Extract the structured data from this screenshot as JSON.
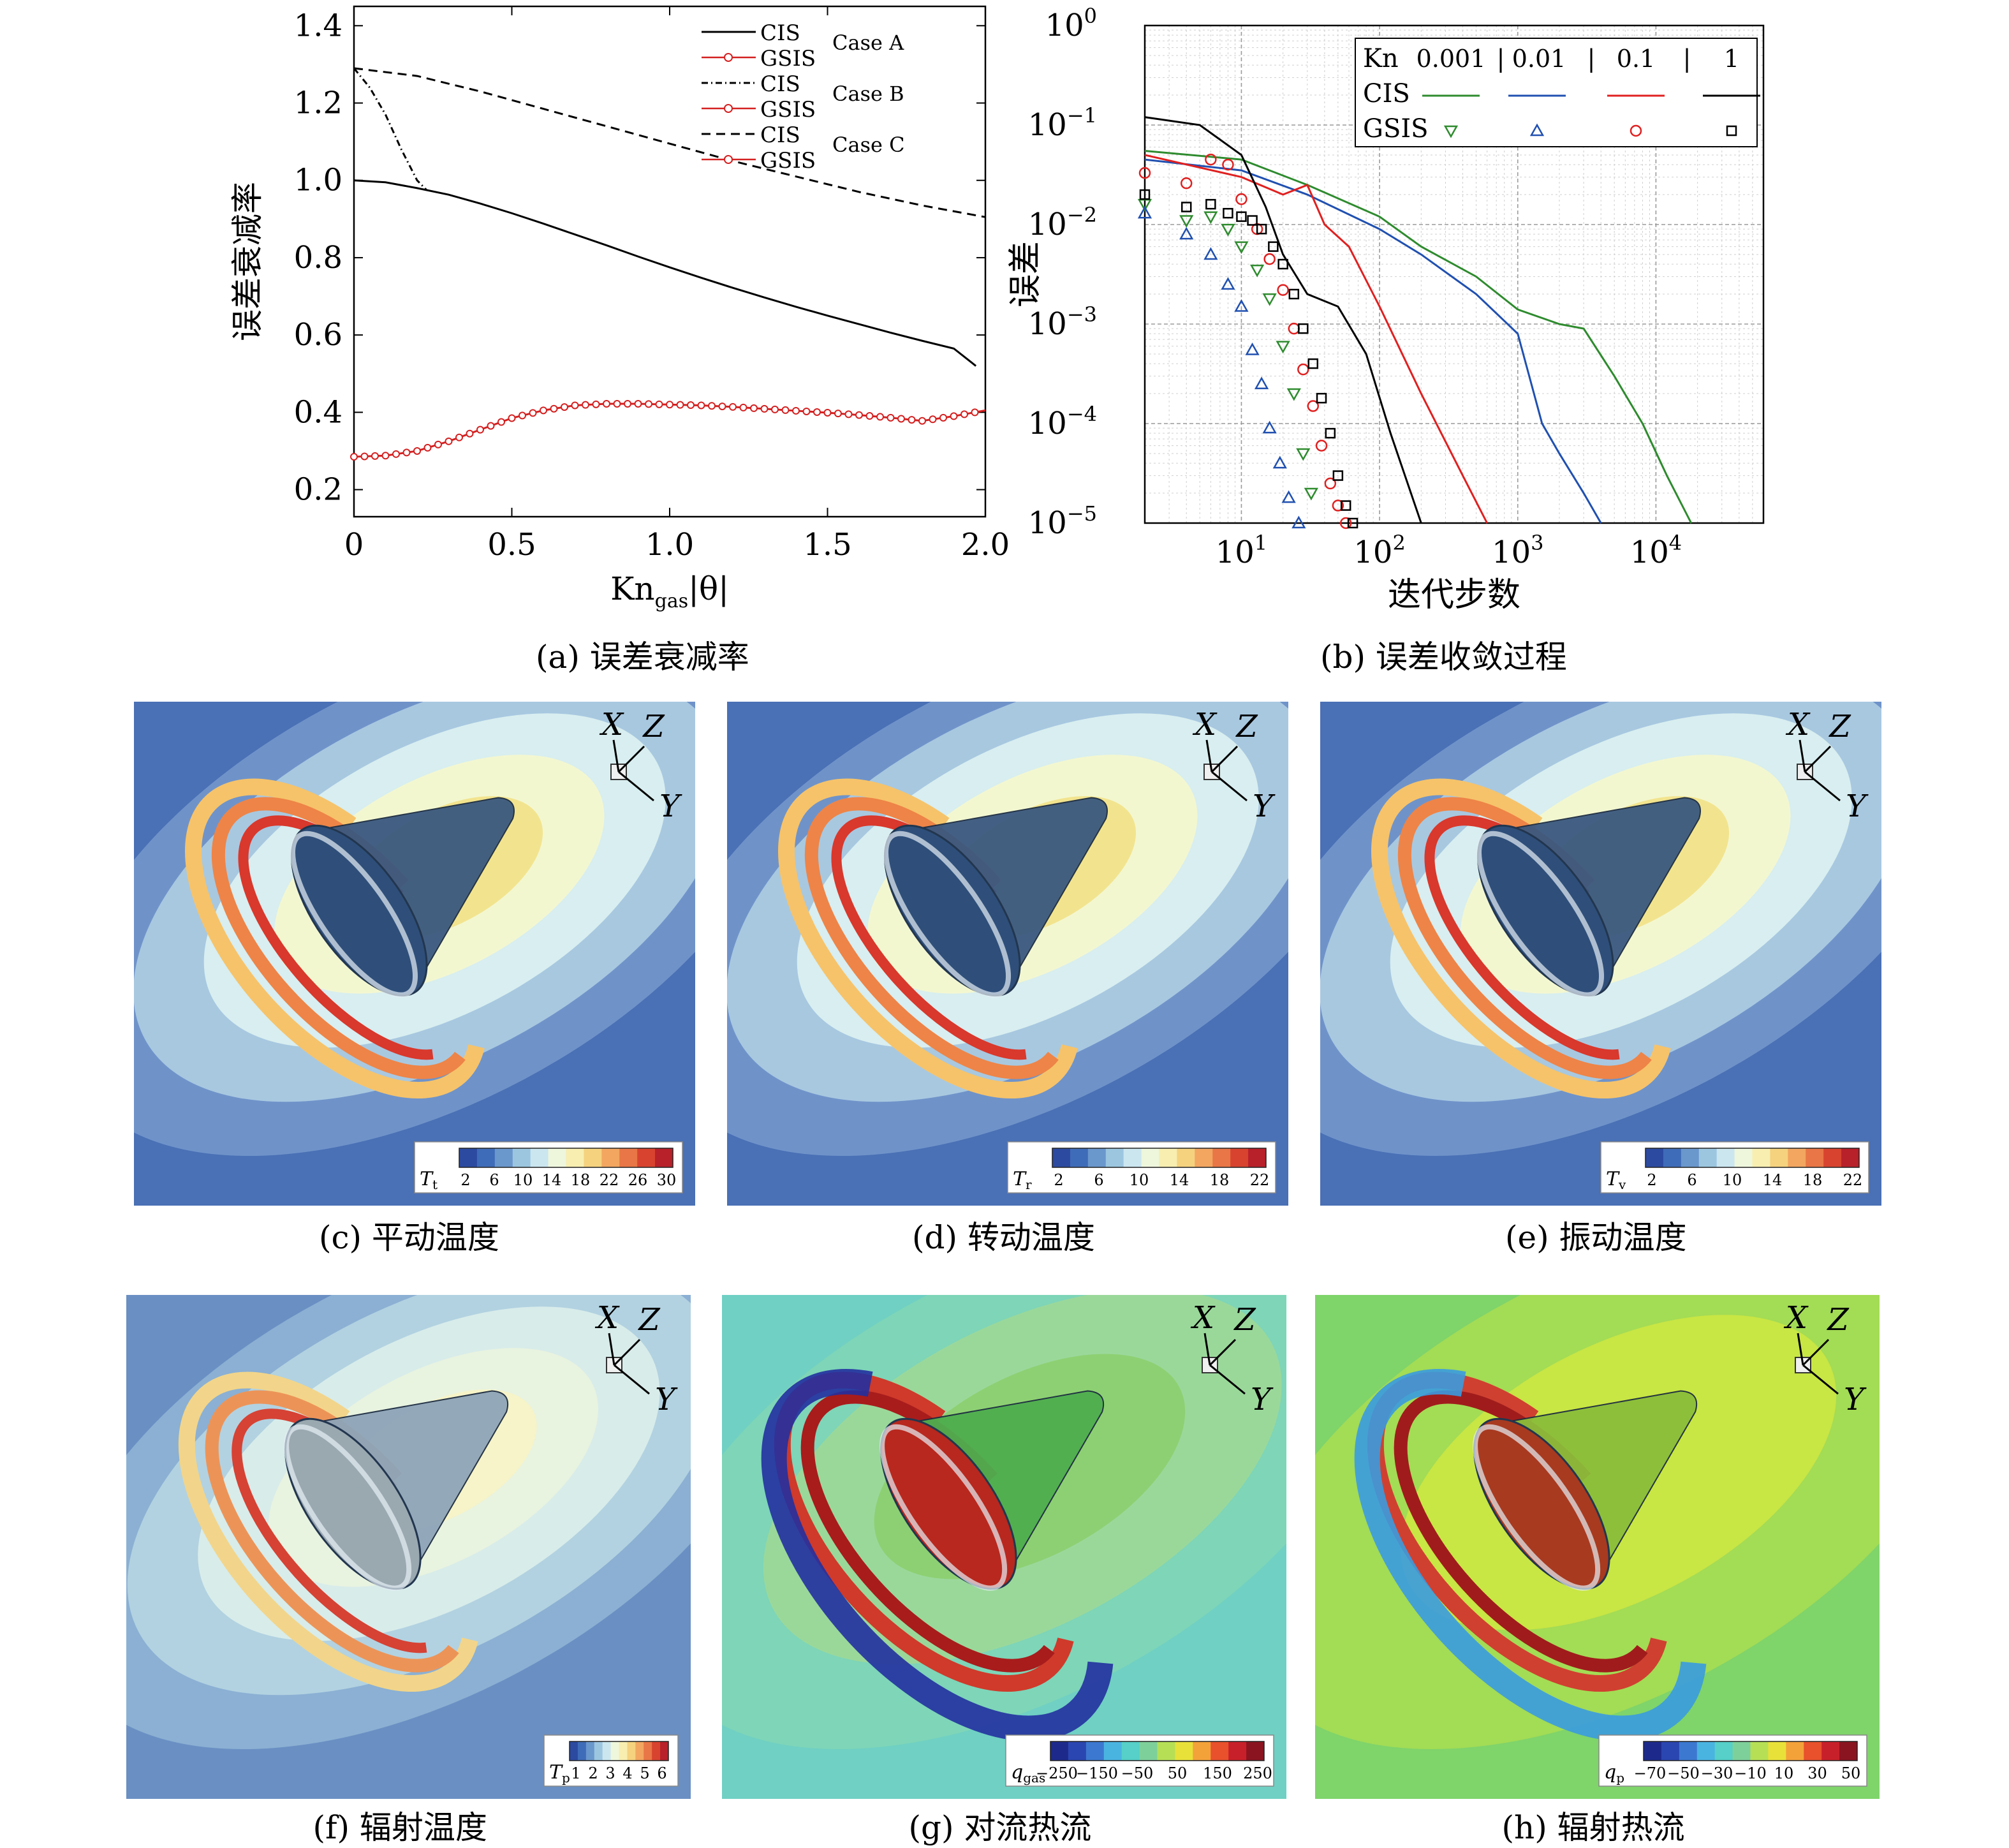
{
  "figure": {
    "panel_a": {
      "caption": "(a) 误差衰减率",
      "chart_data": {
        "type": "line",
        "xlabel_main": "Kn",
        "xlabel_sub": "gas",
        "xlabel_tail": "|θ|",
        "ylabel": "误差衰减率",
        "xlim": [
          0,
          2.0
        ],
        "ylim": [
          0.13,
          1.45
        ],
        "xticks": [
          "0",
          "0.5",
          "1.0",
          "1.5",
          "2.0"
        ],
        "yticks": [
          "0.2",
          "0.4",
          "0.6",
          "0.8",
          "1.0",
          "1.2",
          "1.4"
        ],
        "legend": [
          {
            "label": "CIS",
            "style": "solid",
            "color": "#000000",
            "group": "Case A"
          },
          {
            "label": "GSIS",
            "style": "circle",
            "color": "#d42020",
            "group": ""
          },
          {
            "label": "CIS",
            "style": "dashdot",
            "color": "#000000",
            "group": "Case B"
          },
          {
            "label": "GSIS",
            "style": "star",
            "color": "#d42020",
            "group": ""
          },
          {
            "label": "CIS",
            "style": "dashed",
            "color": "#000000",
            "group": "Case C"
          },
          {
            "label": "GSIS",
            "style": "cross",
            "color": "#d42020",
            "group": ""
          }
        ],
        "legend_groups": [
          "Case A",
          "Case B",
          "Case C"
        ],
        "series": [
          {
            "name": "CIS Case A",
            "style": "solid",
            "x": [
              0,
              0.1,
              0.2,
              0.3,
              0.4,
              0.5,
              0.6,
              0.7,
              0.8,
              0.9,
              1.0,
              1.1,
              1.2,
              1.3,
              1.4,
              1.5,
              1.6,
              1.7,
              1.8,
              1.9,
              1.97
            ],
            "y": [
              1.0,
              0.995,
              0.98,
              0.963,
              0.94,
              0.915,
              0.888,
              0.86,
              0.832,
              0.803,
              0.775,
              0.748,
              0.722,
              0.697,
              0.673,
              0.65,
              0.628,
              0.606,
              0.585,
              0.565,
              0.52
            ]
          },
          {
            "name": "CIS Case B",
            "style": "dashdot",
            "x": [
              0,
              0.05,
              0.1,
              0.15,
              0.2,
              0.23
            ],
            "y": [
              1.29,
              1.24,
              1.17,
              1.08,
              1.0,
              0.975
            ]
          },
          {
            "name": "CIS Case C",
            "style": "dashed",
            "x": [
              0,
              0.2,
              0.4,
              0.6,
              0.8,
              1.0,
              1.2,
              1.4,
              1.6,
              1.8,
              2.0
            ],
            "y": [
              1.29,
              1.27,
              1.23,
              1.185,
              1.14,
              1.095,
              1.05,
              1.01,
              0.97,
              0.935,
              0.905
            ]
          },
          {
            "name": "GSIS",
            "style": "circle",
            "x": [
              0,
              0.1,
              0.2,
              0.3,
              0.4,
              0.5,
              0.6,
              0.7,
              0.8,
              0.9,
              1.0,
              1.1,
              1.2,
              1.3,
              1.4,
              1.5,
              1.6,
              1.7,
              1.8,
              1.9,
              2.0
            ],
            "y": [
              0.285,
              0.288,
              0.3,
              0.325,
              0.355,
              0.385,
              0.405,
              0.418,
              0.422,
              0.422,
              0.42,
              0.418,
              0.414,
              0.409,
              0.404,
              0.399,
              0.393,
              0.386,
              0.378,
              0.39,
              0.405
            ]
          }
        ]
      }
    },
    "panel_b": {
      "caption": "(b) 误差收敛过程",
      "chart_data": {
        "type": "scatter",
        "xscale": "log",
        "yscale": "log",
        "xlabel": "迭代步数",
        "ylabel": "误差",
        "xlim": [
          2,
          60000
        ],
        "ylim": [
          1e-05,
          1
        ],
        "xtick_base": "10",
        "xtick_exps": [
          "1",
          "2",
          "3",
          "4"
        ],
        "ytick_base": "10",
        "ytick_exps": [
          "0",
          "−1",
          "−2",
          "−3",
          "−4",
          "−5"
        ],
        "legend": {
          "kn_label": "Kn",
          "header": [
            "0.001",
            "|",
            "0.01",
            "|",
            "0.1",
            "|",
            "1"
          ],
          "cis_label": "CIS",
          "gsis_label": "GSIS",
          "colors": [
            "#2e8b2e",
            "#2050b0",
            "#e02020",
            "#000000"
          ]
        },
        "series": [
          {
            "name": "CIS 0.001",
            "color": "#2e8b2e",
            "kind": "line",
            "x": [
              2,
              10,
              30,
              100,
              200,
              500,
              1000,
              2000,
              3000,
              5000,
              8000,
              12000,
              18000
            ],
            "y": [
              0.055,
              0.045,
              0.025,
              0.012,
              0.006,
              0.003,
              0.0014,
              0.001,
              0.0009,
              0.0003,
              0.0001,
              3e-05,
              1e-05
            ]
          },
          {
            "name": "CIS 0.01",
            "color": "#2050b0",
            "kind": "line",
            "x": [
              2,
              10,
              30,
              100,
              200,
              500,
              1000,
              1500,
              2000,
              3000,
              4000
            ],
            "y": [
              0.045,
              0.035,
              0.02,
              0.009,
              0.005,
              0.002,
              0.0008,
              0.0001,
              5e-05,
              2e-05,
              1e-05
            ]
          },
          {
            "name": "CIS 0.1",
            "color": "#e02020",
            "kind": "line",
            "x": [
              2,
              10,
              20,
              30,
              40,
              60,
              100,
              200,
              400,
              600
            ],
            "y": [
              0.05,
              0.03,
              0.02,
              0.025,
              0.01,
              0.006,
              0.0015,
              0.0002,
              3e-05,
              1e-05
            ]
          },
          {
            "name": "CIS 1",
            "color": "#000000",
            "kind": "line",
            "x": [
              2,
              5,
              10,
              15,
              20,
              30,
              50,
              80,
              120,
              200
            ],
            "y": [
              0.12,
              0.1,
              0.05,
              0.015,
              0.005,
              0.002,
              0.0015,
              0.0005,
              8e-05,
              1e-05
            ]
          },
          {
            "name": "GSIS 0.001",
            "color": "#2e8b2e",
            "kind": "marker",
            "marker": "tri-down",
            "x": [
              2,
              4,
              6,
              8,
              10,
              13,
              16,
              20,
              24,
              28,
              32
            ],
            "y": [
              0.016,
              0.011,
              0.012,
              0.009,
              0.006,
              0.0035,
              0.0018,
              0.0006,
              0.0002,
              5e-05,
              2e-05
            ]
          },
          {
            "name": "GSIS 0.01",
            "color": "#2050b0",
            "kind": "marker",
            "marker": "tri-up",
            "x": [
              2,
              4,
              6,
              8,
              10,
              12,
              14,
              16,
              19,
              22,
              26
            ],
            "y": [
              0.013,
              0.008,
              0.005,
              0.0025,
              0.0015,
              0.00055,
              0.00025,
              9e-05,
              4e-05,
              1.8e-05,
              1e-05
            ]
          },
          {
            "name": "GSIS 0.1",
            "color": "#e02020",
            "kind": "marker",
            "marker": "circle",
            "x": [
              2,
              4,
              6,
              8,
              10,
              13,
              16,
              20,
              24,
              28,
              33,
              38,
              44,
              50,
              57
            ],
            "y": [
              0.033,
              0.026,
              0.045,
              0.04,
              0.018,
              0.009,
              0.0045,
              0.0022,
              0.0009,
              0.00035,
              0.00015,
              6e-05,
              2.5e-05,
              1.5e-05,
              1e-05
            ]
          },
          {
            "name": "GSIS 1",
            "color": "#000000",
            "kind": "marker",
            "marker": "square",
            "x": [
              2,
              4,
              6,
              8,
              10,
              12,
              14,
              17,
              20,
              24,
              28,
              33,
              38,
              44,
              50,
              57,
              64
            ],
            "y": [
              0.02,
              0.015,
              0.016,
              0.013,
              0.012,
              0.011,
              0.009,
              0.006,
              0.004,
              0.002,
              0.0009,
              0.0004,
              0.00018,
              8e-05,
              3e-05,
              1.5e-05,
              1e-05
            ]
          }
        ]
      }
    },
    "contours": [
      {
        "id": "c",
        "caption": "(c) 平动温度",
        "symbol": "T",
        "sub": "t",
        "ticks": [
          "2",
          "6",
          "10",
          "14",
          "18",
          "22",
          "26",
          "30"
        ],
        "axes": [
          "X",
          "Z",
          "Y"
        ]
      },
      {
        "id": "d",
        "caption": "(d) 转动温度",
        "symbol": "T",
        "sub": "r",
        "ticks": [
          "2",
          "6",
          "10",
          "14",
          "18",
          "22"
        ],
        "axes": [
          "X",
          "Z",
          "Y"
        ]
      },
      {
        "id": "e",
        "caption": "(e) 振动温度",
        "symbol": "T",
        "sub": "v",
        "ticks": [
          "2",
          "6",
          "10",
          "14",
          "18",
          "22"
        ],
        "axes": [
          "X",
          "Z",
          "Y"
        ]
      },
      {
        "id": "f",
        "caption": "(f) 辐射温度",
        "symbol": "T",
        "sub": "p",
        "ticks": [
          "1",
          "2",
          "3",
          "4",
          "5",
          "6"
        ],
        "axes": [
          "X",
          "Z",
          "Y"
        ]
      },
      {
        "id": "g",
        "caption": "(g) 对流热流",
        "symbol": "q",
        "sub": "gas",
        "ticks": [
          "−250",
          "−150",
          "−50",
          "50",
          "150",
          "250"
        ],
        "axes": [
          "X",
          "Z",
          "Y"
        ]
      },
      {
        "id": "h",
        "caption": "(h) 辐射热流",
        "symbol": "q",
        "sub": "p",
        "ticks": [
          "−70",
          "−50",
          "−30",
          "−10",
          "10",
          "30",
          "50"
        ],
        "axes": [
          "X",
          "Z",
          "Y"
        ]
      }
    ]
  }
}
